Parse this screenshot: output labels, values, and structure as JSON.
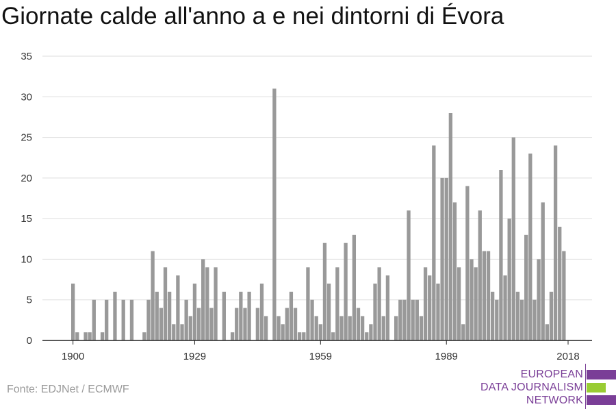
{
  "title": "Giornate calde all'anno a e nei dintorni di Évora",
  "source": "Fonte: EDJNet / ECMWF",
  "logo": {
    "line1": "EUROPEAN",
    "line2": "DATA JOURNALISM",
    "line3": "NETWORK",
    "colors": {
      "purple": "#7a3e97",
      "green": "#99cc33"
    }
  },
  "colors": {
    "bar": "#999999",
    "grid": "#dddddd",
    "axis": "#222222"
  },
  "chart_data": {
    "type": "bar",
    "title": "Giornate calde all'anno a e nei dintorni di Évora",
    "xlabel": "",
    "ylabel": "",
    "ylim": [
      0,
      35
    ],
    "yticks": [
      0,
      5,
      10,
      15,
      20,
      25,
      30,
      35
    ],
    "xticks": [
      1900,
      1929,
      1959,
      1989,
      2018
    ],
    "grid": true,
    "x": [
      1900,
      1901,
      1902,
      1903,
      1904,
      1905,
      1906,
      1907,
      1908,
      1909,
      1910,
      1911,
      1912,
      1913,
      1914,
      1915,
      1916,
      1917,
      1918,
      1919,
      1920,
      1921,
      1922,
      1923,
      1924,
      1925,
      1926,
      1927,
      1928,
      1929,
      1930,
      1931,
      1932,
      1933,
      1934,
      1935,
      1936,
      1937,
      1938,
      1939,
      1940,
      1941,
      1942,
      1943,
      1944,
      1945,
      1946,
      1947,
      1948,
      1949,
      1950,
      1951,
      1952,
      1953,
      1954,
      1955,
      1956,
      1957,
      1958,
      1959,
      1960,
      1961,
      1962,
      1963,
      1964,
      1965,
      1966,
      1967,
      1968,
      1969,
      1970,
      1971,
      1972,
      1973,
      1974,
      1975,
      1976,
      1977,
      1978,
      1979,
      1980,
      1981,
      1982,
      1983,
      1984,
      1985,
      1986,
      1987,
      1988,
      1989,
      1990,
      1991,
      1992,
      1993,
      1994,
      1995,
      1996,
      1997,
      1998,
      1999,
      2000,
      2001,
      2002,
      2003,
      2004,
      2005,
      2006,
      2007,
      2008,
      2009,
      2010,
      2011,
      2012,
      2013,
      2014,
      2015,
      2016,
      2017,
      2018
    ],
    "values": [
      7,
      1,
      0,
      1,
      1,
      5,
      0,
      1,
      5,
      0,
      6,
      0,
      5,
      0,
      5,
      0,
      0,
      1,
      5,
      11,
      6,
      4,
      9,
      6,
      2,
      8,
      2,
      5,
      3,
      7,
      4,
      10,
      9,
      4,
      9,
      0,
      6,
      0,
      1,
      4,
      6,
      4,
      6,
      0,
      4,
      7,
      3,
      0,
      31,
      3,
      2,
      4,
      6,
      4,
      1,
      1,
      9,
      5,
      3,
      2,
      12,
      7,
      1,
      9,
      3,
      12,
      3,
      13,
      4,
      3,
      1,
      2,
      7,
      9,
      3,
      8,
      0,
      3,
      5,
      5,
      16,
      5,
      5,
      3,
      9,
      8,
      24,
      7,
      20,
      20,
      28,
      17,
      9,
      2,
      19,
      10,
      9,
      16,
      11,
      11,
      6,
      5,
      21,
      8,
      15,
      25,
      6,
      5,
      13,
      23,
      5,
      10,
      17,
      2,
      6,
      24,
      14,
      11,
      0
    ]
  }
}
